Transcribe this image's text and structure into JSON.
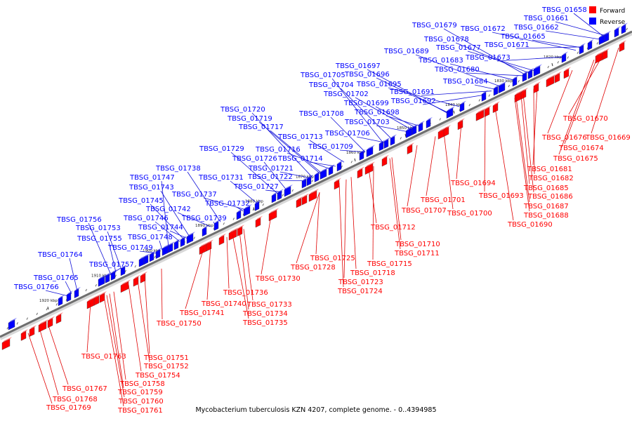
{
  "caption": "Mycobacterium tuberculosis KZN 4207, complete genome. - 0..4394985",
  "legend": [
    {
      "label": "Forward",
      "color": "#ff0000"
    },
    {
      "label": "Reverse",
      "color": "#0000ff"
    }
  ],
  "colors": {
    "forward": "#ff0000",
    "forward_line": "#e00000",
    "reverse": "#0000ff",
    "reverse_line": "#1010d8",
    "backbone": "#6e6e6e"
  },
  "ticks": [
    "1820 kbp",
    "1830 kbp",
    "1840 kbp",
    "1850 kbp",
    "1860 kbp",
    "1870 kbp",
    "1880 kbp",
    "1890 kbp",
    "1900 kbp",
    "1910 kbp",
    "1920 kbp"
  ],
  "reverse_genes": [
    "TBSG_01658",
    "TBSG_01661",
    "TBSG_01662",
    "TBSG_01665",
    "TBSG_01671",
    "TBSG_01672",
    "TBSG_01673",
    "TBSG_01677",
    "TBSG_01678",
    "TBSG_01679",
    "TBSG_01680",
    "TBSG_01683",
    "TBSG_01684",
    "TBSG_01689",
    "TBSG_01691",
    "TBSG_01692",
    "TBSG_01695",
    "TBSG_01696",
    "TBSG_01697",
    "TBSG_01698",
    "TBSG_01699",
    "TBSG_01702",
    "TBSG_01703",
    "TBSG_01704",
    "TBSG_01705",
    "TBSG_01706",
    "TBSG_01708",
    "TBSG_01709",
    "TBSG_01713",
    "TBSG_01714",
    "TBSG_01716",
    "TBSG_01717",
    "TBSG_01719",
    "TBSG_01720",
    "TBSG_01721",
    "TBSG_01722",
    "TBSG_01726",
    "TBSG_01727",
    "TBSG_01729",
    "TBSG_01731",
    "TBSG_01732",
    "TBSG_01737",
    "TBSG_01738",
    "TBSG_01739",
    "TBSG_01742",
    "TBSG_01743",
    "TBSG_01744",
    "TBSG_01745",
    "TBSG_01746",
    "TBSG_01747",
    "TBSG_01748",
    "TBSG_01749",
    "TBSG_01753",
    "TBSG_01755",
    "TBSG_01756",
    "TBSG_01757",
    "TBSG_01764",
    "TBSG_01765",
    "TBSG_01766"
  ],
  "forward_genes": [
    "TBSG_01669",
    "TBSG_01670",
    "TBSG_01674",
    "TBSG_01675",
    "TBSG_01676",
    "TBSG_01681",
    "TBSG_01682",
    "TBSG_01685",
    "TBSG_01686",
    "TBSG_01687",
    "TBSG_01688",
    "TBSG_01690",
    "TBSG_01693",
    "TBSG_01694",
    "TBSG_01700",
    "TBSG_01701",
    "TBSG_01707",
    "TBSG_01710",
    "TBSG_01711",
    "TBSG_01712",
    "TBSG_01715",
    "TBSG_01718",
    "TBSG_01723",
    "TBSG_01724",
    "TBSG_01725",
    "TBSG_01728",
    "TBSG_01730",
    "TBSG_01733",
    "TBSG_01734",
    "TBSG_01735",
    "TBSG_01736",
    "TBSG_01740",
    "TBSG_01741",
    "TBSG_01750",
    "TBSG_01751",
    "TBSG_01752",
    "TBSG_01754",
    "TBSG_01758",
    "TBSG_01759",
    "TBSG_01760",
    "TBSG_01761",
    "TBSG_01763",
    "TBSG_01767",
    "TBSG_01768",
    "TBSG_01769"
  ]
}
